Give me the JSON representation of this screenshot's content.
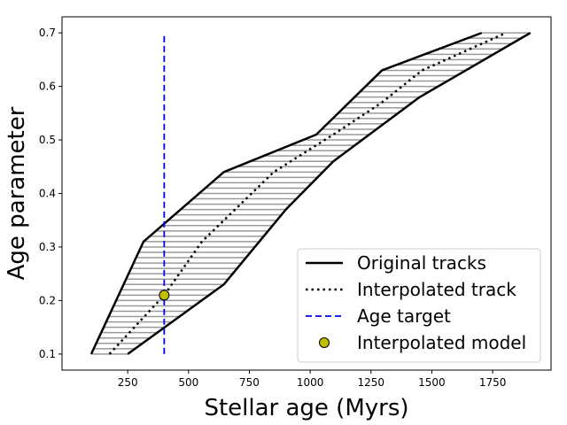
{
  "chart_data": {
    "type": "line",
    "xlabel": "Stellar age (Myrs)",
    "ylabel": "Age parameter",
    "xlim": [
      -20,
      1990
    ],
    "ylim": [
      0.07,
      0.73
    ],
    "xticks": [
      250,
      500,
      750,
      1000,
      1250,
      1500,
      1750
    ],
    "xtick_labels": [
      "250",
      "500",
      "750",
      "1000",
      "1250",
      "1500",
      "1750"
    ],
    "yticks": [
      0.1,
      0.2,
      0.3,
      0.4,
      0.5,
      0.6,
      0.7
    ],
    "ytick_labels": [
      "0.1",
      "0.2",
      "0.3",
      "0.4",
      "0.5",
      "0.6",
      "0.7"
    ],
    "grid": false,
    "legend_position": "lower-right",
    "series": [
      {
        "name": "Original tracks",
        "style": "solid",
        "color": "#000000",
        "x": [
          100,
          315,
          645,
          1025,
          1295,
          1705
        ],
        "y": [
          0.1,
          0.31,
          0.44,
          0.51,
          0.63,
          0.7
        ]
      },
      {
        "style": "solid",
        "color": "#000000",
        "x": [
          250,
          645,
          900,
          1095,
          1450,
          1905
        ],
        "y": [
          0.1,
          0.23,
          0.37,
          0.46,
          0.58,
          0.7
        ]
      },
      {
        "name": "Interpolated track",
        "style": "dotted",
        "color": "#000000",
        "x": [
          175,
          400,
          555,
          850,
          1095,
          1295,
          1460,
          1805
        ],
        "y": [
          0.1,
          0.21,
          0.31,
          0.44,
          0.51,
          0.57,
          0.63,
          0.7
        ]
      },
      {
        "name": "Age target",
        "style": "dashed",
        "color": "#0000ee",
        "x": [
          400,
          400
        ],
        "y": [
          0.1,
          0.7
        ]
      },
      {
        "name": "Interpolated model",
        "style": "marker",
        "color": "#bfbf00",
        "x": [
          400
        ],
        "y": [
          0.21
        ]
      }
    ],
    "hatch": {
      "color": "#9a9a9a",
      "y_start": 0.1,
      "y_end": 0.7,
      "step": 0.01
    }
  }
}
